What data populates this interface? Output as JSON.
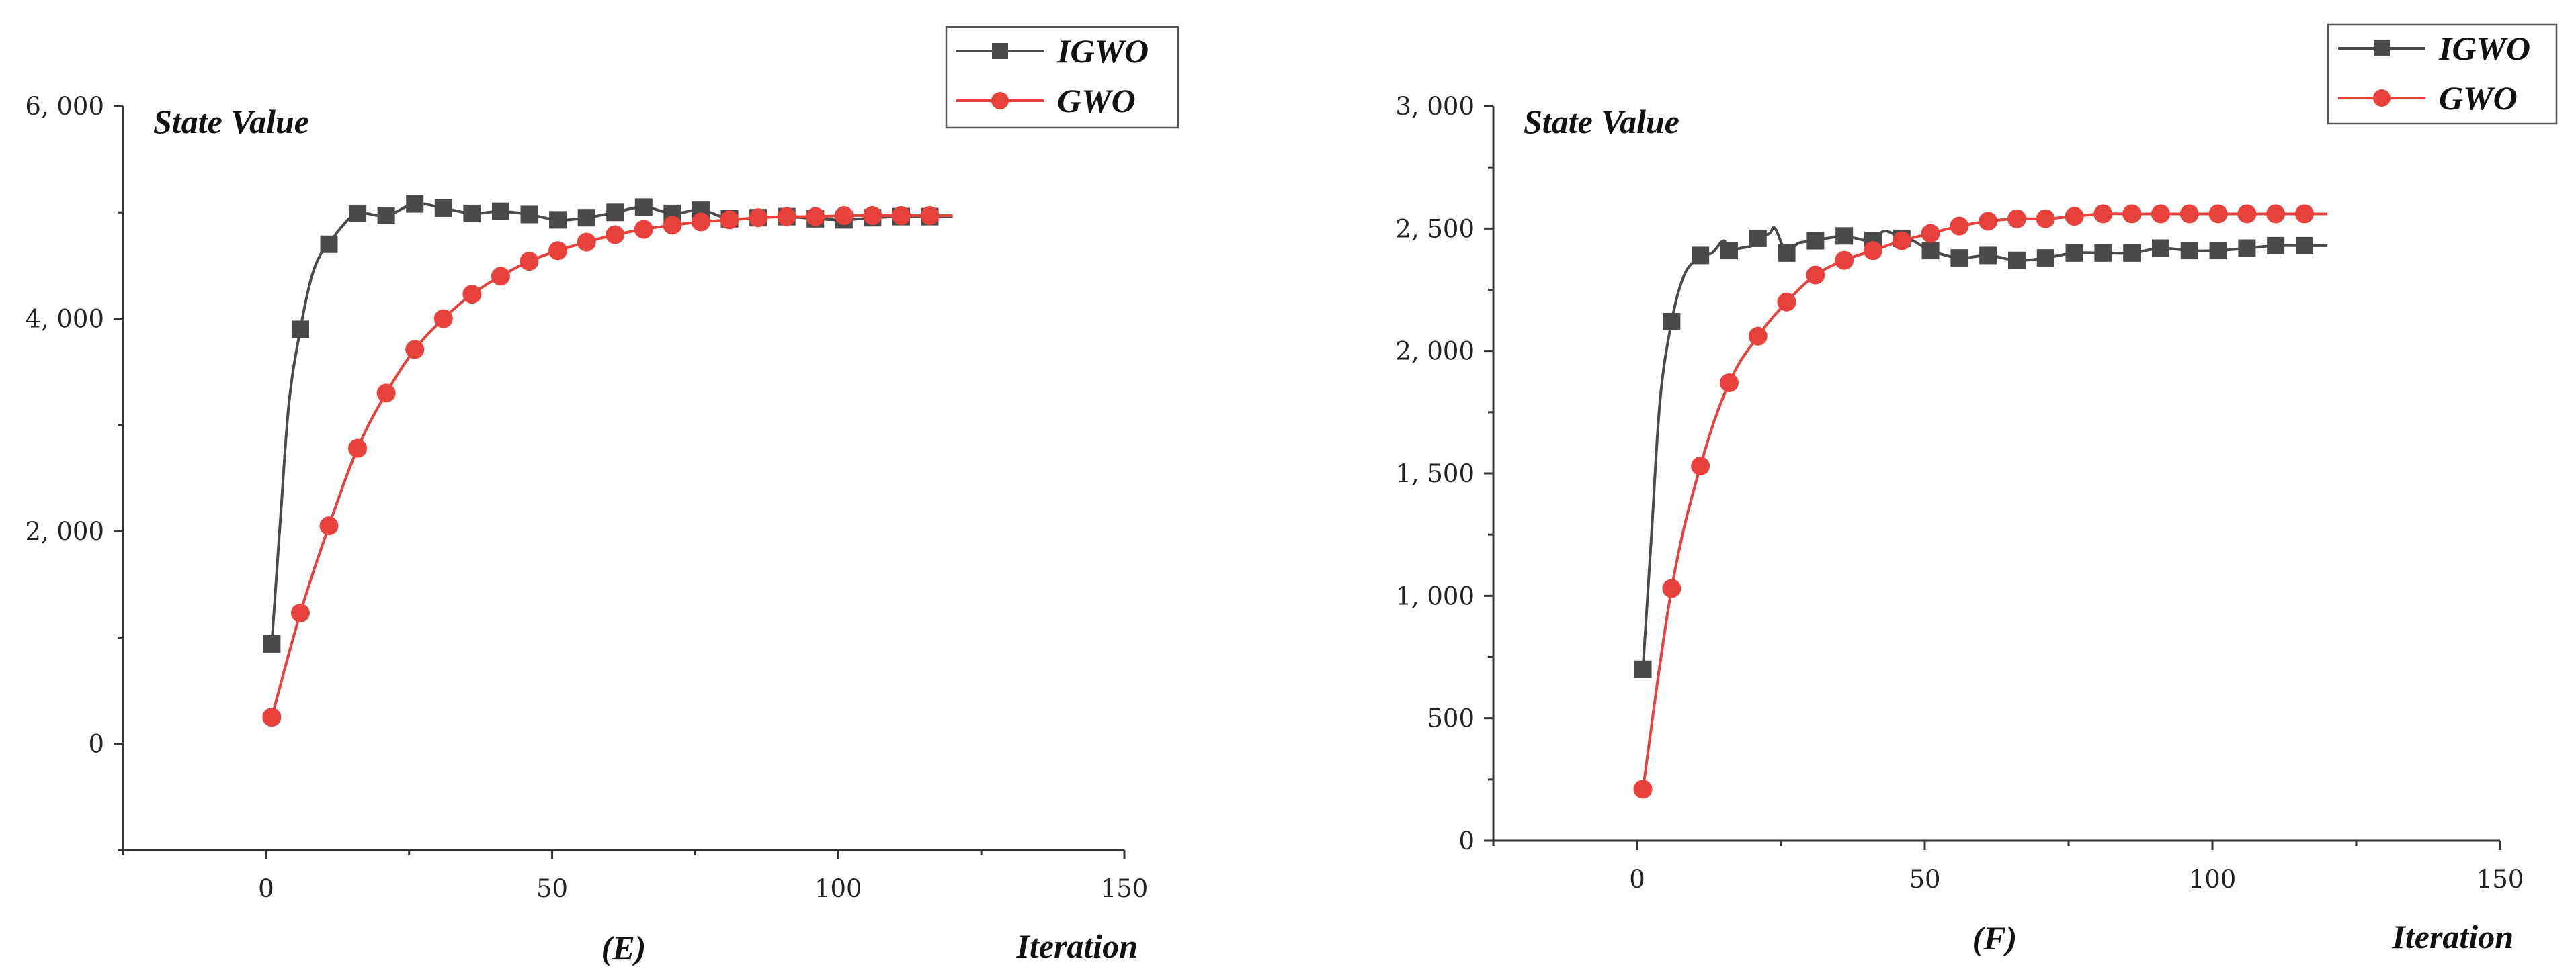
{
  "chart_data": [
    {
      "type": "line",
      "panel_label": "(E)",
      "ylabel": "State Value",
      "xlabel": "Iteration",
      "xlim": [
        -25,
        150
      ],
      "ylim": [
        -1000,
        6000
      ],
      "x_ticks": [
        0,
        50,
        100,
        150
      ],
      "x_tick_labels": [
        "0",
        "50",
        "100",
        "150"
      ],
      "y_ticks": [
        0,
        2000,
        4000,
        6000
      ],
      "y_tick_labels": [
        "0",
        "2, 000",
        "4, 000",
        "6, 000"
      ],
      "legend_position": "top-right",
      "series": [
        {
          "name": "IGWO",
          "color": "#4a4a4a",
          "marker": "square",
          "x": [
            1,
            6,
            11,
            16,
            21,
            26,
            31,
            36,
            41,
            46,
            51,
            56,
            61,
            66,
            71,
            76,
            81,
            86,
            91,
            96,
            101,
            106,
            111,
            116
          ],
          "values": [
            940,
            3900,
            4700,
            4990,
            4970,
            5080,
            5040,
            4990,
            5010,
            4980,
            4930,
            4950,
            5000,
            5050,
            4990,
            5020,
            4940,
            4950,
            4960,
            4940,
            4930,
            4950,
            4960,
            4960
          ],
          "line_x": [
            1,
            2.5,
            4,
            6,
            8,
            10,
            11,
            13,
            16,
            21,
            26,
            31,
            36,
            41,
            46,
            51,
            56,
            61,
            66,
            71,
            76,
            81,
            86,
            91,
            96,
            101,
            106,
            111,
            116,
            120
          ],
          "line_values": [
            940,
            2100,
            3200,
            3900,
            4400,
            4650,
            4700,
            4850,
            4990,
            4970,
            5080,
            5040,
            4990,
            5010,
            4980,
            4930,
            4950,
            5000,
            5050,
            4990,
            5020,
            4940,
            4950,
            4960,
            4940,
            4930,
            4950,
            4960,
            4960,
            4960
          ]
        },
        {
          "name": "GWO",
          "color": "#e8403a",
          "marker": "circle",
          "x": [
            1,
            6,
            11,
            16,
            21,
            26,
            31,
            36,
            41,
            46,
            51,
            56,
            61,
            66,
            71,
            76,
            81,
            86,
            91,
            96,
            101,
            106,
            111,
            116
          ],
          "values": [
            250,
            1230,
            2050,
            2780,
            3300,
            3710,
            4000,
            4230,
            4400,
            4540,
            4640,
            4720,
            4790,
            4840,
            4880,
            4910,
            4930,
            4950,
            4960,
            4960,
            4970,
            4970,
            4970,
            4970
          ],
          "line_x": [
            1,
            6,
            11,
            16,
            21,
            26,
            31,
            36,
            41,
            46,
            51,
            56,
            61,
            66,
            71,
            76,
            81,
            86,
            91,
            96,
            101,
            106,
            111,
            116,
            120
          ],
          "line_values": [
            250,
            1230,
            2050,
            2780,
            3300,
            3710,
            4000,
            4230,
            4400,
            4540,
            4640,
            4720,
            4790,
            4840,
            4880,
            4910,
            4930,
            4950,
            4960,
            4960,
            4970,
            4970,
            4970,
            4970,
            4970
          ]
        }
      ]
    },
    {
      "type": "line",
      "panel_label": "(F)",
      "ylabel": "State Value",
      "xlabel": "Iteration",
      "xlim": [
        -25,
        150
      ],
      "ylim": [
        0,
        3000
      ],
      "x_ticks": [
        0,
        50,
        100,
        150
      ],
      "x_tick_labels": [
        "0",
        "50",
        "100",
        "150"
      ],
      "y_ticks": [
        0,
        500,
        1000,
        1500,
        2000,
        2500,
        3000
      ],
      "y_tick_labels": [
        "0",
        "500",
        "1, 000",
        "1, 500",
        "2, 000",
        "2, 500",
        "3, 000"
      ],
      "legend_position": "top-right",
      "series": [
        {
          "name": "IGWO",
          "color": "#4a4a4a",
          "marker": "square",
          "x": [
            1,
            6,
            11,
            16,
            21,
            26,
            31,
            36,
            41,
            46,
            51,
            56,
            61,
            66,
            71,
            76,
            81,
            86,
            91,
            96,
            101,
            106,
            111,
            116
          ],
          "values": [
            700,
            2120,
            2390,
            2410,
            2460,
            2400,
            2450,
            2470,
            2450,
            2460,
            2410,
            2380,
            2390,
            2370,
            2380,
            2400,
            2400,
            2400,
            2420,
            2410,
            2410,
            2420,
            2430,
            2430
          ],
          "line_x": [
            1,
            2.5,
            4,
            6,
            8,
            10,
            11,
            13,
            15,
            16,
            18,
            20,
            21,
            23,
            24,
            26,
            28,
            31,
            33,
            36,
            38,
            41,
            43,
            46,
            48,
            51,
            56,
            61,
            66,
            71,
            76,
            81,
            86,
            91,
            96,
            101,
            106,
            111,
            116,
            120
          ],
          "line_values": [
            700,
            1250,
            1800,
            2120,
            2300,
            2370,
            2390,
            2400,
            2450,
            2410,
            2420,
            2430,
            2460,
            2480,
            2500,
            2400,
            2440,
            2450,
            2460,
            2470,
            2460,
            2450,
            2490,
            2460,
            2450,
            2410,
            2380,
            2390,
            2370,
            2380,
            2400,
            2400,
            2400,
            2420,
            2410,
            2410,
            2420,
            2430,
            2430,
            2430
          ]
        },
        {
          "name": "GWO",
          "color": "#e8403a",
          "marker": "circle",
          "x": [
            1,
            6,
            11,
            16,
            21,
            26,
            31,
            36,
            41,
            46,
            51,
            56,
            61,
            66,
            71,
            76,
            81,
            86,
            91,
            96,
            101,
            106,
            111,
            116
          ],
          "values": [
            210,
            1030,
            1530,
            1870,
            2060,
            2200,
            2310,
            2370,
            2410,
            2450,
            2480,
            2510,
            2530,
            2540,
            2540,
            2550,
            2560,
            2560,
            2560,
            2560,
            2560,
            2560,
            2560,
            2560
          ],
          "line_x": [
            1,
            6,
            11,
            16,
            21,
            26,
            31,
            36,
            41,
            46,
            51,
            56,
            61,
            66,
            71,
            76,
            81,
            86,
            91,
            96,
            101,
            106,
            111,
            116,
            120
          ],
          "line_values": [
            210,
            1030,
            1530,
            1870,
            2060,
            2200,
            2310,
            2370,
            2410,
            2450,
            2480,
            2510,
            2530,
            2540,
            2540,
            2550,
            2560,
            2560,
            2560,
            2560,
            2560,
            2560,
            2560,
            2560,
            2560
          ]
        }
      ]
    }
  ]
}
